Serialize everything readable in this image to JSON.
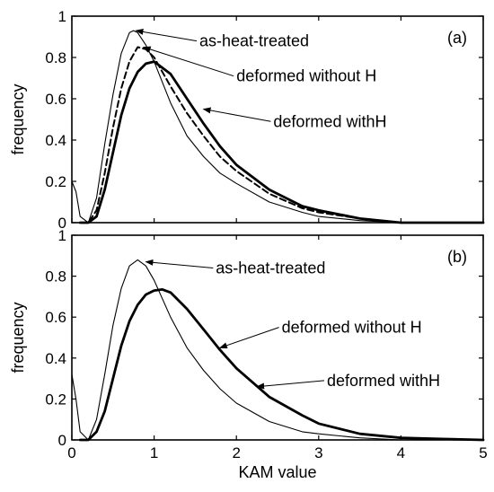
{
  "chart_data": [
    {
      "type": "line",
      "panel_label": "(a)",
      "ylabel": "frequency",
      "xlabel": "",
      "xlim": [
        0,
        5
      ],
      "ylim": [
        0,
        1
      ],
      "yticks": [
        "0",
        "0.2",
        "0.4",
        "0.6",
        "0.8",
        "1"
      ],
      "xticks": [],
      "series": [
        {
          "name": "as-heat-treated",
          "style": "thin",
          "x": [
            0.0,
            0.05,
            0.1,
            0.2,
            0.3,
            0.4,
            0.5,
            0.6,
            0.7,
            0.75,
            0.8,
            0.9,
            1.0,
            1.2,
            1.4,
            1.6,
            1.8,
            2.0,
            2.4,
            2.8,
            3.0,
            3.5,
            4.0,
            5.0
          ],
          "y": [
            0.2,
            0.15,
            0.03,
            0.0,
            0.12,
            0.38,
            0.62,
            0.82,
            0.92,
            0.93,
            0.92,
            0.86,
            0.78,
            0.58,
            0.42,
            0.32,
            0.24,
            0.19,
            0.1,
            0.05,
            0.03,
            0.01,
            0.0,
            0.0
          ]
        },
        {
          "name": "deformed without H",
          "style": "dashed",
          "x": [
            0.1,
            0.2,
            0.3,
            0.4,
            0.5,
            0.6,
            0.7,
            0.8,
            0.9,
            1.0,
            1.2,
            1.4,
            1.6,
            1.8,
            2.0,
            2.4,
            2.8,
            3.0,
            3.5,
            4.0,
            5.0
          ],
          "y": [
            0.0,
            0.0,
            0.06,
            0.24,
            0.46,
            0.65,
            0.78,
            0.85,
            0.84,
            0.8,
            0.66,
            0.53,
            0.42,
            0.32,
            0.25,
            0.14,
            0.07,
            0.05,
            0.02,
            0.0,
            0.0
          ]
        },
        {
          "name": "deformed withH",
          "style": "thick",
          "x": [
            0.1,
            0.2,
            0.3,
            0.4,
            0.5,
            0.6,
            0.7,
            0.8,
            0.9,
            1.0,
            1.2,
            1.4,
            1.6,
            1.8,
            2.0,
            2.4,
            2.8,
            3.0,
            3.5,
            4.0,
            5.0
          ],
          "y": [
            0.0,
            0.0,
            0.03,
            0.16,
            0.34,
            0.52,
            0.65,
            0.73,
            0.77,
            0.78,
            0.72,
            0.6,
            0.48,
            0.37,
            0.28,
            0.16,
            0.08,
            0.06,
            0.02,
            0.0,
            0.0
          ]
        }
      ],
      "annotations": [
        {
          "text": "as-heat-treated",
          "x": 1.55,
          "y": 0.88,
          "tx": 0.78,
          "ty": 0.93
        },
        {
          "text": "deformed without H",
          "x": 2.0,
          "y": 0.71,
          "tx": 0.87,
          "ty": 0.85
        },
        {
          "text": "deformed withH",
          "x": 2.45,
          "y": 0.49,
          "tx": 1.6,
          "ty": 0.55
        }
      ]
    },
    {
      "type": "line",
      "panel_label": "(b)",
      "ylabel": "frequency",
      "xlabel": "KAM value",
      "xlim": [
        0,
        5
      ],
      "ylim": [
        0,
        1
      ],
      "yticks": [
        "0",
        "0.2",
        "0.4",
        "0.6",
        "0.8",
        "1"
      ],
      "xticks": [
        "0",
        "1",
        "2",
        "3",
        "4",
        "5"
      ],
      "series": [
        {
          "name": "as-heat-treated",
          "style": "thin",
          "x": [
            0.0,
            0.05,
            0.1,
            0.2,
            0.3,
            0.4,
            0.5,
            0.6,
            0.7,
            0.8,
            0.9,
            1.0,
            1.2,
            1.4,
            1.6,
            1.8,
            2.0,
            2.4,
            2.8,
            3.0,
            3.5,
            4.0,
            4.5,
            5.0
          ],
          "y": [
            0.32,
            0.2,
            0.04,
            0.0,
            0.1,
            0.32,
            0.56,
            0.74,
            0.85,
            0.88,
            0.85,
            0.78,
            0.6,
            0.45,
            0.34,
            0.25,
            0.18,
            0.09,
            0.04,
            0.03,
            0.01,
            0.0,
            0.0,
            0.0
          ]
        },
        {
          "name": "deformed without H",
          "style": "dashed",
          "x": [
            0.1,
            0.2,
            0.3,
            0.4,
            0.5,
            0.6,
            0.7,
            0.8,
            0.9,
            1.0,
            1.1,
            1.2,
            1.4,
            1.6,
            1.8,
            2.0,
            2.4,
            2.8,
            3.0,
            3.5,
            4.0,
            4.5,
            5.0
          ],
          "y": [
            0.0,
            0.0,
            0.04,
            0.14,
            0.3,
            0.46,
            0.58,
            0.66,
            0.71,
            0.73,
            0.735,
            0.72,
            0.64,
            0.54,
            0.44,
            0.35,
            0.21,
            0.12,
            0.08,
            0.03,
            0.01,
            0.005,
            0.0
          ]
        },
        {
          "name": "deformed withH",
          "style": "thick",
          "x": [
            0.1,
            0.2,
            0.3,
            0.4,
            0.5,
            0.6,
            0.7,
            0.8,
            0.9,
            1.0,
            1.1,
            1.2,
            1.4,
            1.6,
            1.8,
            2.0,
            2.4,
            2.8,
            3.0,
            3.5,
            4.0,
            4.5,
            5.0
          ],
          "y": [
            0.0,
            0.0,
            0.04,
            0.14,
            0.3,
            0.46,
            0.58,
            0.66,
            0.71,
            0.73,
            0.735,
            0.72,
            0.64,
            0.54,
            0.44,
            0.35,
            0.21,
            0.12,
            0.08,
            0.03,
            0.01,
            0.005,
            0.0
          ]
        }
      ],
      "annotations": [
        {
          "text": "as-heat-treated",
          "x": 1.75,
          "y": 0.84,
          "tx": 0.9,
          "ty": 0.87
        },
        {
          "text": "deformed without H",
          "x": 2.55,
          "y": 0.55,
          "tx": 1.8,
          "ty": 0.45
        },
        {
          "text": "deformed withH",
          "x": 3.1,
          "y": 0.29,
          "tx": 2.25,
          "ty": 0.26
        }
      ]
    }
  ]
}
